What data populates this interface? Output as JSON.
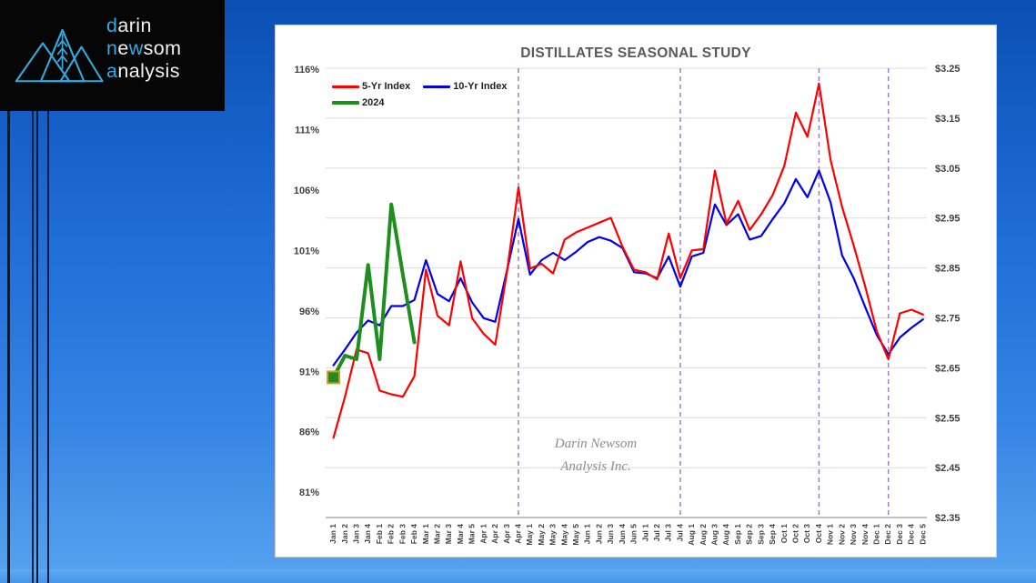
{
  "page": {
    "background_accent": "#2B7BE0",
    "bottom_band_color": "#55A3F0"
  },
  "logo": {
    "icon": "mountains-wheat-icon",
    "accent_color": "#35AAE0",
    "lines": [
      {
        "segments": [
          {
            "text": "d",
            "accent": true
          },
          {
            "text": "arin",
            "accent": false
          }
        ]
      },
      {
        "segments": [
          {
            "text": "n",
            "accent": true
          },
          {
            "text": "e",
            "accent": false
          },
          {
            "text": "w",
            "accent": true
          },
          {
            "text": "som",
            "accent": false
          }
        ]
      },
      {
        "segments": [
          {
            "text": "a",
            "accent": true
          },
          {
            "text": "nalysis",
            "accent": false
          }
        ]
      }
    ]
  },
  "chart": {
    "title": "DISTILLATES SEASONAL STUDY",
    "watermark_line1": "Darin Newsom",
    "watermark_line2": "Analysis Inc."
  },
  "chart_data": {
    "type": "line",
    "title": "DISTILLATES SEASONAL STUDY",
    "legend_position": "top-left",
    "grid": "horizontal gridlines at right-axis price ticks",
    "categories": [
      "Jan 1",
      "Jan 2",
      "Jan 3",
      "Jan 4",
      "Feb 1",
      "Feb 2",
      "Feb 3",
      "Feb 4",
      "Mar 1",
      "Mar 2",
      "Mar 3",
      "Mar 4",
      "Mar 5",
      "Apr 1",
      "Apr 2",
      "Apr 3",
      "Apr 4",
      "May 1",
      "May 2",
      "May 3",
      "May 4",
      "May 5",
      "Jun 1",
      "Jun 2",
      "Jun 3",
      "Jun 4",
      "Jun 5",
      "Jul 1",
      "Jul 2",
      "Jul 3",
      "Jul 4",
      "Aug 1",
      "Aug 2",
      "Aug 3",
      "Aug 4",
      "Sep 1",
      "Sep 2",
      "Sep 3",
      "Sep 4",
      "Oct 1",
      "Oct 2",
      "Oct 3",
      "Oct 4",
      "Nov 1",
      "Nov 2",
      "Nov 3",
      "Nov 4",
      "Dec 1",
      "Dec 2",
      "Dec 3",
      "Dec 4",
      "Dec 5"
    ],
    "series": [
      {
        "name": "5-Yr Index",
        "color": "#FF0000",
        "width": 2.2,
        "values": [
          85.5,
          88.9,
          92.8,
          92.5,
          89.4,
          89.1,
          88.9,
          90.6,
          99.4,
          95.6,
          94.8,
          100.1,
          95.4,
          94.1,
          93.2,
          99.2,
          106.2,
          99.5,
          99.9,
          99.1,
          101.9,
          102.5,
          102.9,
          103.3,
          103.7,
          101.3,
          99.4,
          99.2,
          98.6,
          102.4,
          98.7,
          101.0,
          101.1,
          107.6,
          103.2,
          105.1,
          102.7,
          104.0,
          105.6,
          108.0,
          112.4,
          110.4,
          114.8,
          108.5,
          104.6,
          101.4,
          98.0,
          94.3,
          92.0,
          95.8,
          96.1,
          95.7
        ]
      },
      {
        "name": "10-Yr Index",
        "color": "#0000EE",
        "width": 2.2,
        "values": [
          91.5,
          92.8,
          94.2,
          95.2,
          94.8,
          96.4,
          96.4,
          96.9,
          100.2,
          97.4,
          96.8,
          98.7,
          96.7,
          95.4,
          95.1,
          99.3,
          103.6,
          99.0,
          100.2,
          100.8,
          100.2,
          100.9,
          101.7,
          102.1,
          101.8,
          101.2,
          99.2,
          99.1,
          98.7,
          100.5,
          98.0,
          100.5,
          100.8,
          104.8,
          103.1,
          104.0,
          101.9,
          102.2,
          103.6,
          104.9,
          106.9,
          105.4,
          107.6,
          105.0,
          100.6,
          98.7,
          96.3,
          94.0,
          92.4,
          93.8,
          94.6,
          95.3
        ]
      },
      {
        "name": "2024",
        "color": "#1E8F1E",
        "width": 4,
        "values": [
          90.5,
          92.3,
          92.0,
          99.8,
          92.0,
          104.8,
          99.0,
          93.4
        ],
        "start_marker": {
          "shape": "square",
          "fill": "#1E8F1E",
          "border": "#C9A227"
        }
      }
    ],
    "left_axis": {
      "unit": "percent",
      "min": 81,
      "max": 116,
      "ticks": [
        116,
        111,
        106,
        101,
        96,
        91,
        86,
        81
      ],
      "labels": [
        "116%",
        "111%",
        "106%",
        "101%",
        "96%",
        "91%",
        "86%",
        "81%"
      ]
    },
    "right_axis": {
      "unit": "dollars",
      "min": 2.35,
      "max": 3.25,
      "ticks": [
        3.25,
        3.15,
        3.05,
        2.95,
        2.85,
        2.75,
        2.65,
        2.55,
        2.45,
        2.35
      ],
      "labels": [
        "$3.25",
        "$3.15",
        "$3.05",
        "$2.95",
        "$2.85",
        "$2.75",
        "$2.65",
        "$2.55",
        "$2.45",
        "$2.35"
      ]
    },
    "vlines": [
      {
        "index": 16,
        "label": "Apr 4",
        "color": "#A07EC8",
        "style": "dashed"
      },
      {
        "index": 30,
        "label": "Jul 4",
        "color": "#A07EC8",
        "style": "dashed"
      },
      {
        "index": 42,
        "label": "Oct 4",
        "color": "#A07EC8",
        "style": "dashed"
      },
      {
        "index": 48,
        "label": "Dec 2",
        "color": "#A07EC8",
        "style": "dashed"
      }
    ]
  }
}
